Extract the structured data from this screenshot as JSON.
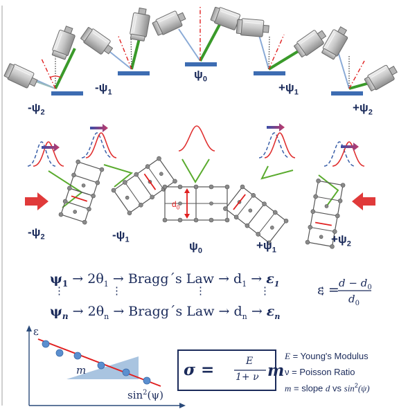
{
  "colors": {
    "navy": "#1a2a5a",
    "beam_green": "#3a9a2a",
    "red": "#e03030",
    "blue_peak": "#3a5fa8",
    "sample_blue": "#3d6cb2",
    "fit_line": "#e02020",
    "triangle": "#a9c4e0",
    "point_blue": "#5b8fcf"
  },
  "icons": [
    "goniometer-icon",
    "x-ray-source-icon",
    "detector-icon",
    "force-arrow-icon",
    "peak-shift-arrow-icon"
  ],
  "top_labels": {
    "m2": {
      "pre": "-ψ",
      "sub": "2"
    },
    "m1": {
      "pre": "-ψ",
      "sub": "1"
    },
    "zero": {
      "pre": "ψ",
      "sub": "0"
    },
    "p1": {
      "pre": "+ψ",
      "sub": "1"
    },
    "p2": {
      "pre": "+ψ",
      "sub": "2"
    }
  },
  "mid_labels": {
    "m2": {
      "pre": "-ψ",
      "sub": "2"
    },
    "m1": {
      "pre": "-ψ",
      "sub": "1"
    },
    "zero": {
      "pre": "ψ",
      "sub": "0"
    },
    "p1": {
      "pre": "+ψ",
      "sub": "1"
    },
    "p2": {
      "pre": "+ψ",
      "sub": "2"
    }
  },
  "d0_label": {
    "d": "d",
    "sub": "0"
  },
  "equations": {
    "row1": {
      "psi": "ψ",
      "psi_sub": "1",
      "arrow1": "→",
      "theta": "2θ",
      "theta_sub": "1",
      "arrow2": "→",
      "law": "Bragg΄s Law",
      "arrow3": "→",
      "d": "d",
      "d_sub": "1",
      "arrow4": "→",
      "eps": "ε",
      "eps_sub": "1"
    },
    "row2": {
      "psi": "ψ",
      "psi_sub": "n",
      "arrow1": "→",
      "theta": "2θ",
      "theta_sub": "n",
      "arrow2": "→",
      "law": "Bragg΄s Law",
      "arrow3": "→",
      "d": "d",
      "d_sub": "n",
      "arrow4": "→",
      "eps": "ε",
      "eps_sub": "n"
    },
    "dots": "⋮",
    "strain": {
      "lhs": "ε",
      "eq": "=",
      "num_d": "d",
      "num_minus": "−",
      "num_d0": "d",
      "num_d0_sub": "0",
      "den_d": "d",
      "den_sub": "0"
    }
  },
  "plot": {
    "y_axis": "ε",
    "x_axis": "sin",
    "x_axis_sup": "2",
    "x_axis_arg": "(ψ)",
    "slope_label": "m"
  },
  "stress_eq": {
    "sigma": "σ",
    "eq": "=",
    "num": "E",
    "den": "1+ ν",
    "m": "m"
  },
  "legend": [
    {
      "sym": "E",
      "text": " = Young's Modulus"
    },
    {
      "sym": "ν",
      "text": " = Poisson Ratio"
    },
    {
      "sym": "m",
      "text": " = slope ",
      "d": "d",
      "vs": " vs ",
      "fn": "sin",
      "sup": "2",
      "arg": "(ψ)"
    }
  ]
}
